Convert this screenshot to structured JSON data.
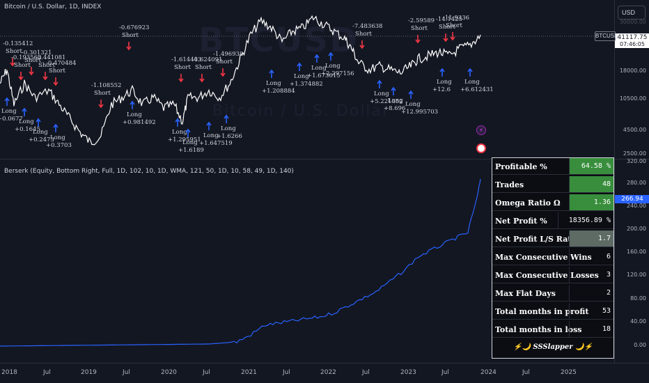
{
  "legend": {
    "main": "Bitcoin / U.S. Dollar, 1D, INDEX",
    "indicator": "Berserk (Equity, Bottom Right, Full, 1D, 102, 10, 1D, WMA, 121, 50, 1D, 10, 58, 49, 1D, 140)"
  },
  "watermark": {
    "symbol": "BTCUSD",
    "name": "Bitcoin / U.S. Dollar"
  },
  "currency_button": "USD",
  "symbol_tag": "BTCUSD",
  "last_price": "41117.75",
  "countdown": "07:46:05",
  "equity_value": "266.94",
  "colors": {
    "bg": "#131722",
    "long": "#2962ff",
    "short": "#f23645",
    "green_cell": "#388e3c",
    "gray_cell": "#5d6b64",
    "equity": "#2962ff"
  },
  "axes": {
    "main_ticks": [
      "30000.00",
      "18000.00",
      "10500.00",
      "4500.00",
      "2500.00"
    ],
    "sub_ticks": [
      "320.00",
      "280.00",
      "240.00",
      "200.00",
      "160.00",
      "120.00",
      "80.00",
      "40.00",
      "0.00"
    ],
    "time_ticks": [
      "2018",
      "Jul",
      "2019",
      "Jul",
      "2020",
      "Jul",
      "2021",
      "Jul",
      "2022",
      "Jul",
      "2023",
      "Jul",
      "2024",
      "Jul",
      "2025"
    ]
  },
  "signals": {
    "short_labels": [
      "-0.135412\nShort",
      "-0.193563\nShort",
      "-0.301321\nShort",
      "-0.441081\nShort",
      "-0.470484\nShort",
      "-0.676923\nShort",
      "-1.108552\nShort",
      "-1.614403\nShort",
      "-1.624091\nShort",
      "-1.496938\nShort",
      "-7.483638\nShort",
      "-2.59589\nShort",
      "-14.1425\nShort",
      "-11.9336\nShort"
    ],
    "long_labels": [
      "Long\n+0.0677",
      "Long\n+0.1645",
      "Long\n+0.2473",
      "Long\n+0.3703",
      "Long\n+0.981492",
      "Long\n+1.295951",
      "Long\n+1.6189",
      "Long\n+1.647519",
      "Long\n+1.6266",
      "Long\n+1.208884",
      "Long\n+1.374882",
      "Long\n+1.673015",
      "Long\n+2.297156",
      "Long\n+5.221352",
      "Long\n+8.696",
      "Long\n+12.995703",
      "Long\n+12.6",
      "Long\n+6.612431"
    ]
  },
  "stats": {
    "rows": [
      {
        "k": "Profitable %",
        "v": "64.58 %"
      },
      {
        "k": "Trades",
        "v": "48"
      },
      {
        "k": "Omega Ratio Ω",
        "v": "1.36"
      },
      {
        "k": "Net Profit %",
        "v": "18356.89 %"
      },
      {
        "k": "Net Profit L/S Ratio",
        "v": "1.7"
      },
      {
        "k": "Max Consecutive Wins",
        "v": "6"
      },
      {
        "k": "Max Consecutive Losses",
        "v": "3"
      },
      {
        "k": "Max Flat Days",
        "v": "2"
      },
      {
        "k": "Total months in profit",
        "v": "53"
      },
      {
        "k": "Total months in loss",
        "v": "18"
      }
    ],
    "brand": "⚡🌙 SSSlapper 🌙⚡"
  }
}
